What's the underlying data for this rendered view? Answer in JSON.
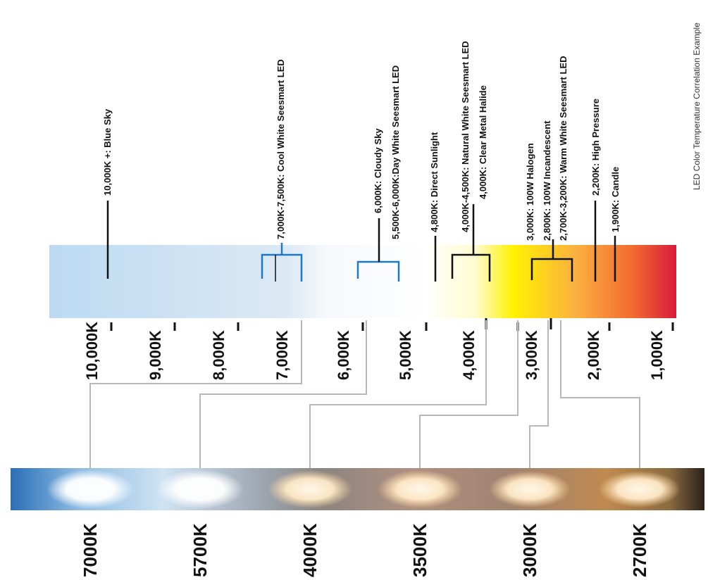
{
  "caption": "LED Color Temperature Correlation Example",
  "scale": {
    "ticks": [
      "10,000K",
      "9,000K",
      "8,000K",
      "7,000K",
      "6,000K",
      "5,000K",
      "4,000K",
      "3,000K",
      "2,000K",
      "1,000K"
    ]
  },
  "annotations": [
    "10,000K +: Blue Sky",
    "7,000K-7,500K: Cool White Seesmart LED",
    "6,000K: Cloudy Sky",
    "5,500K-6,000K:Day White Seesmart LED",
    "4,800K: Direct Sunlight",
    "4,000K-4,500K: Natural White Seesmart LED",
    "4,000K: Clear Metal Halide",
    "3,000K: 100W Halogen",
    "2,800K: 100W Incandescent",
    "2,700K-3,200K: Warm White Seesmart LED",
    "2,200K: High Pressure",
    "1,900K: Candle"
  ],
  "strip_labels": [
    "7000K",
    "5700K",
    "4000K",
    "3500K",
    "3000K",
    "2700K"
  ],
  "colors": {
    "cool": "#b8d8f0",
    "white": "#ffffff",
    "yellow": "#fff200",
    "orange": "#f7941d",
    "red": "#e0203a",
    "cool_bracket": "#1a7ac8",
    "connector": "#b8b8b8"
  }
}
